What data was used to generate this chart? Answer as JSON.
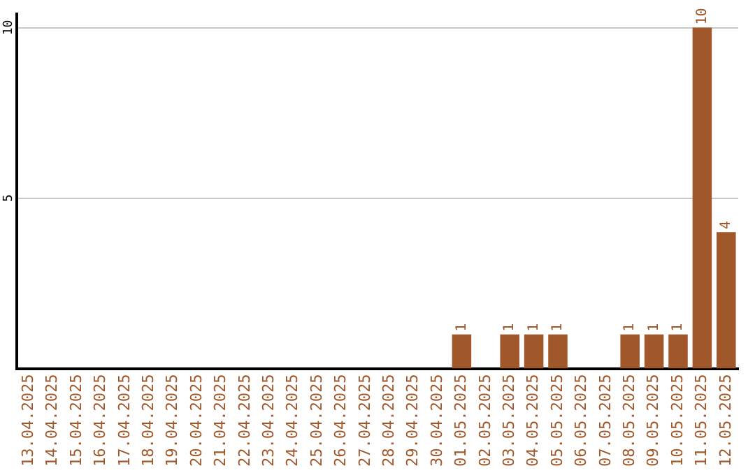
{
  "chart_data": {
    "type": "bar",
    "categories": [
      "13.04.2025",
      "14.04.2025",
      "15.04.2025",
      "16.04.2025",
      "17.04.2025",
      "18.04.2025",
      "19.04.2025",
      "20.04.2025",
      "21.04.2025",
      "22.04.2025",
      "23.04.2025",
      "24.04.2025",
      "25.04.2025",
      "26.04.2025",
      "27.04.2025",
      "28.04.2025",
      "29.04.2025",
      "30.04.2025",
      "01.05.2025",
      "02.05.2025",
      "03.05.2025",
      "04.05.2025",
      "05.05.2025",
      "06.05.2025",
      "07.05.2025",
      "08.05.2025",
      "09.05.2025",
      "10.05.2025",
      "11.05.2025",
      "12.05.2025"
    ],
    "values": [
      0,
      0,
      0,
      0,
      0,
      0,
      0,
      0,
      0,
      0,
      0,
      0,
      0,
      0,
      0,
      0,
      0,
      0,
      1,
      0,
      1,
      1,
      1,
      0,
      0,
      1,
      1,
      1,
      10,
      4
    ],
    "value_labels": [
      null,
      null,
      null,
      null,
      null,
      null,
      null,
      null,
      null,
      null,
      null,
      null,
      null,
      null,
      null,
      null,
      null,
      null,
      "1",
      null,
      "1",
      "1",
      "1",
      null,
      null,
      "1",
      "1",
      "1",
      "10",
      "4"
    ],
    "color": "#a0572a",
    "ylim": [
      0,
      10.4
    ],
    "yticks": [
      5,
      10
    ],
    "grid": "y",
    "legend": false
  }
}
